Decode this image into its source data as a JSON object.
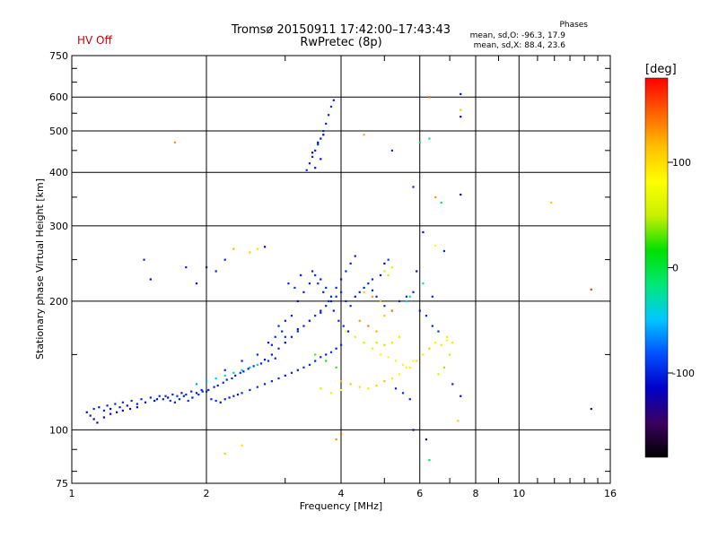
{
  "title": {
    "line1": "Tromsø 20150911 17:42:00–17:43:43",
    "line2": "RwPretec (8p)"
  },
  "status": {
    "hv": "HV Off"
  },
  "phases": {
    "heading": "Phases",
    "o_stats": "mean, sd,O: -96.3, 17.9",
    "x_stats": "mean, sd,X:  88.4, 23.6"
  },
  "colorbar": {
    "unit": "[deg]",
    "ticks": [
      100,
      0,
      -100
    ],
    "range": [
      -180,
      180
    ],
    "colors": [
      "#000000",
      "#3c0060",
      "#0000c8",
      "#0050ff",
      "#00c8ff",
      "#00e878",
      "#00e000",
      "#c8f000",
      "#ffff00",
      "#ffc000",
      "#ff6000",
      "#ff0000"
    ]
  },
  "chart_data": {
    "type": "scatter",
    "xlabel": "Frequency [MHz]",
    "ylabel": "Stationary phase Virtual Height [km]",
    "xscale": "log",
    "yscale": "log",
    "xlim": [
      1,
      16
    ],
    "ylim": [
      75,
      750
    ],
    "xticks": [
      1,
      2,
      4,
      6,
      8,
      10,
      16
    ],
    "yticks": [
      75,
      100,
      200,
      300,
      400,
      500,
      600,
      750
    ],
    "grid": true,
    "color_by": "phase_deg",
    "points": [
      [
        1.08,
        110,
        -110
      ],
      [
        1.1,
        108,
        -105
      ],
      [
        1.12,
        112,
        -100
      ],
      [
        1.15,
        113,
        -108
      ],
      [
        1.18,
        111,
        -95
      ],
      [
        1.2,
        114,
        -102
      ],
      [
        1.22,
        112,
        -112
      ],
      [
        1.25,
        115,
        -98
      ],
      [
        1.28,
        113,
        -105
      ],
      [
        1.3,
        116,
        -100
      ],
      [
        1.33,
        114,
        -110
      ],
      [
        1.36,
        117,
        -96
      ],
      [
        1.4,
        115,
        -104
      ],
      [
        1.43,
        118,
        -99
      ],
      [
        1.46,
        116,
        -108
      ],
      [
        1.5,
        119,
        -101
      ],
      [
        1.53,
        117,
        -106
      ],
      [
        1.57,
        120,
        -97
      ],
      [
        1.6,
        118,
        -103
      ],
      [
        1.64,
        119,
        -110
      ],
      [
        1.68,
        121,
        -100
      ],
      [
        1.72,
        120,
        -95
      ],
      [
        1.76,
        122,
        -105
      ],
      [
        1.8,
        121,
        -98
      ],
      [
        1.85,
        123,
        -102
      ],
      [
        1.9,
        122,
        -107
      ],
      [
        1.95,
        124,
        -99
      ],
      [
        2.0,
        123,
        -104
      ],
      [
        2.05,
        118,
        -100
      ],
      [
        2.1,
        117,
        -96
      ],
      [
        2.15,
        116,
        -108
      ],
      [
        2.2,
        118,
        -101
      ],
      [
        2.25,
        119,
        -103
      ],
      [
        2.3,
        120,
        -98
      ],
      [
        2.35,
        121,
        -105
      ],
      [
        2.4,
        122,
        -99
      ],
      [
        2.5,
        124,
        -102
      ],
      [
        2.6,
        126,
        -95
      ],
      [
        2.7,
        128,
        -104
      ],
      [
        2.8,
        130,
        -100
      ],
      [
        2.9,
        132,
        -97
      ],
      [
        3.0,
        134,
        -103
      ],
      [
        3.1,
        136,
        -99
      ],
      [
        3.2,
        138,
        -106
      ],
      [
        3.3,
        140,
        -100
      ],
      [
        3.4,
        142,
        -96
      ],
      [
        3.5,
        145,
        -104
      ],
      [
        3.6,
        148,
        -98
      ],
      [
        3.7,
        150,
        -102
      ],
      [
        3.8,
        152,
        -97
      ],
      [
        3.9,
        155,
        -105
      ],
      [
        4.0,
        158,
        -99
      ],
      [
        1.9,
        128,
        -60
      ],
      [
        2.0,
        130,
        -55
      ],
      [
        2.1,
        132,
        -50
      ],
      [
        2.2,
        134,
        -48
      ],
      [
        2.3,
        136,
        -52
      ],
      [
        2.4,
        138,
        -45
      ],
      [
        2.5,
        140,
        -50
      ],
      [
        2.6,
        142,
        -42
      ],
      [
        2.7,
        146,
        -110
      ],
      [
        2.8,
        150,
        -105
      ],
      [
        2.9,
        155,
        -100
      ],
      [
        3.0,
        160,
        -108
      ],
      [
        3.1,
        165,
        -102
      ],
      [
        3.2,
        170,
        -98
      ],
      [
        3.3,
        175,
        -104
      ],
      [
        3.4,
        180,
        -100
      ],
      [
        3.5,
        185,
        -96
      ],
      [
        3.6,
        190,
        -103
      ],
      [
        3.7,
        195,
        -99
      ],
      [
        3.8,
        200,
        -106
      ],
      [
        3.9,
        205,
        -100
      ],
      [
        4.0,
        210,
        -97
      ],
      [
        2.2,
        138,
        -100
      ],
      [
        2.4,
        145,
        -104
      ],
      [
        2.6,
        150,
        -98
      ],
      [
        2.8,
        158,
        -102
      ],
      [
        3.0,
        165,
        -95
      ],
      [
        3.2,
        172,
        -105
      ],
      [
        3.4,
        180,
        -100
      ],
      [
        3.6,
        188,
        -103
      ],
      [
        3.2,
        200,
        -110
      ],
      [
        3.3,
        210,
        -105
      ],
      [
        3.4,
        220,
        -100
      ],
      [
        3.5,
        230,
        -96
      ],
      [
        3.6,
        225,
        -104
      ],
      [
        3.7,
        215,
        -99
      ],
      [
        3.8,
        205,
        -102
      ],
      [
        3.9,
        215,
        -97
      ],
      [
        4.0,
        225,
        -105
      ],
      [
        4.1,
        235,
        -99
      ],
      [
        4.2,
        245,
        -100
      ],
      [
        4.3,
        255,
        -104
      ],
      [
        4.1,
        200,
        -100
      ],
      [
        4.2,
        195,
        -96
      ],
      [
        4.3,
        205,
        -108
      ],
      [
        4.4,
        210,
        -101
      ],
      [
        4.5,
        215,
        -103
      ],
      [
        4.6,
        220,
        -98
      ],
      [
        4.7,
        212,
        -105
      ],
      [
        4.8,
        205,
        -99
      ],
      [
        4.9,
        200,
        -102
      ],
      [
        5.0,
        195,
        -97
      ],
      [
        5.2,
        190,
        -104
      ],
      [
        5.4,
        200,
        -100
      ],
      [
        5.6,
        205,
        -96
      ],
      [
        5.8,
        210,
        -103
      ],
      [
        3.35,
        405,
        -100
      ],
      [
        3.4,
        420,
        -104
      ],
      [
        3.45,
        435,
        -98
      ],
      [
        3.5,
        450,
        -102
      ],
      [
        3.55,
        465,
        -97
      ],
      [
        3.6,
        480,
        -105
      ],
      [
        3.65,
        500,
        -99
      ],
      [
        3.7,
        520,
        -103
      ],
      [
        3.75,
        545,
        -100
      ],
      [
        3.8,
        570,
        -96
      ],
      [
        3.85,
        590,
        -104
      ],
      [
        3.45,
        445,
        -120
      ],
      [
        3.55,
        470,
        -110
      ],
      [
        3.65,
        490,
        -115
      ],
      [
        3.5,
        410,
        -108
      ],
      [
        3.6,
        430,
        -112
      ],
      [
        4.1,
        170,
        70
      ],
      [
        4.3,
        165,
        60
      ],
      [
        4.5,
        160,
        55
      ],
      [
        4.7,
        155,
        65
      ],
      [
        4.9,
        150,
        75
      ],
      [
        5.1,
        148,
        80
      ],
      [
        5.3,
        145,
        70
      ],
      [
        5.5,
        142,
        85
      ],
      [
        5.7,
        140,
        90
      ],
      [
        5.9,
        145,
        100
      ],
      [
        6.1,
        150,
        95
      ],
      [
        6.3,
        155,
        110
      ],
      [
        6.5,
        160,
        90
      ],
      [
        6.7,
        158,
        100
      ],
      [
        6.9,
        162,
        85
      ],
      [
        7.1,
        160,
        95
      ],
      [
        4.0,
        130,
        120
      ],
      [
        4.2,
        128,
        110
      ],
      [
        4.4,
        126,
        100
      ],
      [
        4.6,
        125,
        95
      ],
      [
        4.8,
        127,
        105
      ],
      [
        5.0,
        130,
        115
      ],
      [
        5.2,
        132,
        90
      ],
      [
        5.4,
        135,
        80
      ],
      [
        5.6,
        140,
        75
      ],
      [
        5.8,
        145,
        85
      ],
      [
        4.4,
        180,
        130
      ],
      [
        4.6,
        175,
        140
      ],
      [
        4.8,
        170,
        120
      ],
      [
        5.0,
        185,
        110
      ],
      [
        5.2,
        190,
        135
      ],
      [
        4.5,
        210,
        110
      ],
      [
        4.7,
        205,
        125
      ],
      [
        4.9,
        200,
        115
      ],
      [
        5.0,
        235,
        60
      ],
      [
        5.1,
        230,
        55
      ],
      [
        5.2,
        240,
        65
      ],
      [
        3.6,
        125,
        60
      ],
      [
        3.8,
        122,
        70
      ],
      [
        4.0,
        124,
        80
      ],
      [
        3.5,
        150,
        30
      ],
      [
        3.7,
        145,
        20
      ],
      [
        3.9,
        140,
        25
      ],
      [
        6.3,
        600,
        150
      ],
      [
        6.3,
        480,
        -30
      ],
      [
        6.0,
        470,
        -20
      ],
      [
        6.5,
        350,
        130
      ],
      [
        6.7,
        340,
        -10
      ],
      [
        7.4,
        610,
        -110
      ],
      [
        7.4,
        560,
        110
      ],
      [
        7.4,
        540,
        -120
      ],
      [
        7.4,
        355,
        -130
      ],
      [
        11.8,
        340,
        110
      ],
      [
        14.5,
        213,
        160
      ],
      [
        14.5,
        112,
        -140
      ],
      [
        1.7,
        470,
        130
      ],
      [
        2.3,
        265,
        120
      ],
      [
        2.5,
        260,
        110
      ],
      [
        2.6,
        265,
        100
      ],
      [
        2.7,
        268,
        -110
      ],
      [
        1.45,
        250,
        -100
      ],
      [
        1.5,
        225,
        -110
      ],
      [
        1.8,
        240,
        -100
      ],
      [
        2.0,
        240,
        -105
      ],
      [
        2.1,
        235,
        -102
      ],
      [
        1.9,
        220,
        -108
      ],
      [
        2.2,
        250,
        -100
      ],
      [
        4.5,
        490,
        120
      ],
      [
        5.2,
        450,
        -100
      ],
      [
        5.8,
        370,
        -100
      ],
      [
        6.1,
        290,
        -110
      ],
      [
        6.2,
        95,
        -120
      ],
      [
        6.3,
        85,
        -10
      ],
      [
        7.3,
        105,
        110
      ],
      [
        5.8,
        100,
        -140
      ],
      [
        2.2,
        88,
        110
      ],
      [
        2.4,
        92,
        100
      ],
      [
        4.0,
        98,
        150
      ],
      [
        3.9,
        95,
        130
      ],
      [
        6.5,
        270,
        80
      ],
      [
        6.8,
        262,
        -100
      ],
      [
        5.9,
        235,
        -110
      ],
      [
        6.1,
        220,
        -20
      ],
      [
        6.4,
        205,
        -100
      ],
      [
        5.6,
        200,
        -40
      ],
      [
        5.7,
        205,
        -30
      ],
      [
        6.9,
        165,
        60
      ],
      [
        7.0,
        150,
        50
      ],
      [
        6.8,
        140,
        40
      ],
      [
        7.1,
        128,
        -100
      ],
      [
        7.4,
        120,
        -110
      ],
      [
        6.6,
        135,
        60
      ],
      [
        5.3,
        125,
        -100
      ],
      [
        5.5,
        122,
        -96
      ],
      [
        5.7,
        118,
        -104
      ],
      [
        4.7,
        225,
        -100
      ],
      [
        4.9,
        230,
        -104
      ],
      [
        5.0,
        245,
        -120
      ],
      [
        5.1,
        250,
        -90
      ],
      [
        6.0,
        190,
        -105
      ],
      [
        6.2,
        185,
        -98
      ],
      [
        6.4,
        175,
        -102
      ],
      [
        6.6,
        170,
        -95
      ],
      [
        4.8,
        160,
        50
      ],
      [
        5.0,
        158,
        45
      ],
      [
        5.2,
        160,
        60
      ],
      [
        5.4,
        165,
        55
      ],
      [
        3.05,
        220,
        -100
      ],
      [
        3.15,
        215,
        -96
      ],
      [
        3.25,
        230,
        -104
      ],
      [
        3.45,
        235,
        -100
      ],
      [
        3.55,
        220,
        -98
      ],
      [
        3.65,
        210,
        -103
      ],
      [
        3.75,
        200,
        -99
      ],
      [
        3.85,
        190,
        -106
      ],
      [
        3.95,
        180,
        -100
      ],
      [
        4.05,
        175,
        -97
      ],
      [
        4.15,
        170,
        -102
      ],
      [
        2.9,
        175,
        -100
      ],
      [
        3.0,
        180,
        -104
      ],
      [
        3.1,
        185,
        -98
      ],
      [
        2.95,
        170,
        -102
      ],
      [
        2.85,
        165,
        -97
      ],
      [
        2.75,
        160,
        -105
      ],
      [
        1.55,
        118,
        -108
      ],
      [
        1.62,
        120,
        -100
      ],
      [
        1.66,
        117,
        -96
      ],
      [
        1.7,
        116,
        -104
      ],
      [
        1.74,
        118,
        -98
      ],
      [
        1.78,
        120,
        -102
      ],
      [
        1.82,
        117,
        -97
      ],
      [
        1.86,
        119,
        -105
      ],
      [
        1.92,
        121,
        -99
      ],
      [
        1.96,
        123,
        -103
      ],
      [
        2.02,
        124,
        -100
      ],
      [
        2.08,
        126,
        -96
      ],
      [
        2.12,
        127,
        -104
      ],
      [
        2.18,
        129,
        -98
      ],
      [
        2.22,
        131,
        -102
      ],
      [
        2.28,
        132,
        -97
      ],
      [
        2.32,
        134,
        -105
      ],
      [
        2.38,
        136,
        -99
      ],
      [
        2.42,
        137,
        -103
      ],
      [
        2.48,
        139,
        -100
      ],
      [
        2.55,
        141,
        -96
      ],
      [
        2.65,
        143,
        -104
      ],
      [
        2.75,
        145,
        -98
      ],
      [
        2.85,
        147,
        -102
      ],
      [
        1.12,
        106,
        -120
      ],
      [
        1.14,
        104,
        -115
      ],
      [
        1.18,
        107,
        -110
      ],
      [
        1.22,
        109,
        -118
      ],
      [
        1.26,
        110,
        -112
      ],
      [
        1.3,
        111,
        -108
      ],
      [
        1.35,
        112,
        -114
      ],
      [
        1.4,
        113,
        -110
      ]
    ]
  }
}
